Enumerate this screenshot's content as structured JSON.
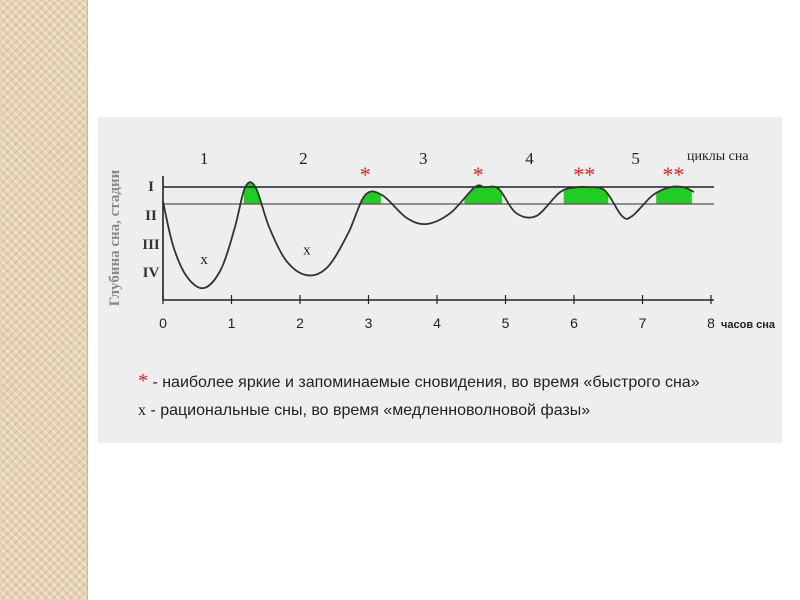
{
  "chart_data": {
    "type": "line",
    "ylabel": "Глубина сна, стадии",
    "xlabel": "часов сна",
    "series_label": "циклы сна",
    "xlim": [
      0,
      8
    ],
    "x_ticks": [
      "0",
      "1",
      "2",
      "3",
      "4",
      "5",
      "6",
      "7",
      "8"
    ],
    "y_stages": [
      "I",
      "II",
      "III",
      "IV"
    ],
    "cycles": [
      "1",
      "2",
      "3",
      "4",
      "5"
    ],
    "hypnogram": {
      "x": [
        0.0,
        0.15,
        0.35,
        0.6,
        0.85,
        1.05,
        1.2,
        1.35,
        1.55,
        1.8,
        2.1,
        2.4,
        2.7,
        2.95,
        3.2,
        3.55,
        3.85,
        4.2,
        4.55,
        4.7,
        4.9,
        5.15,
        5.45,
        5.8,
        6.05,
        6.2,
        6.45,
        6.7,
        6.85,
        7.15,
        7.4,
        7.6,
        7.75
      ],
      "y": [
        1.3,
        2.7,
        3.65,
        4.0,
        3.4,
        2.1,
        0.85,
        0.85,
        2.1,
        3.15,
        3.6,
        3.35,
        2.3,
        1.1,
        1.1,
        1.8,
        2.0,
        1.65,
        0.85,
        0.85,
        0.9,
        1.65,
        1.75,
        1.0,
        0.85,
        0.85,
        0.95,
        1.75,
        1.75,
        1.1,
        0.85,
        0.85,
        1.0
      ]
    },
    "rem_segments": [
      [
        1.18,
        1.42
      ],
      [
        2.78,
        3.18
      ],
      [
        4.4,
        4.95
      ],
      [
        5.85,
        6.5
      ],
      [
        7.2,
        7.72
      ]
    ],
    "markers": [
      {
        "x": 0.6,
        "y": 3.25,
        "text": "x"
      },
      {
        "x": 2.1,
        "y": 2.95,
        "text": "x"
      },
      {
        "x": 2.95,
        "y": 0.05,
        "text": "*"
      },
      {
        "x": 4.6,
        "y": 0.05,
        "text": "*"
      },
      {
        "x": 6.15,
        "y": 0.05,
        "text": "**"
      },
      {
        "x": 7.45,
        "y": 0.05,
        "text": "**"
      }
    ],
    "colors": {
      "line": "#333333",
      "rem_fill": "#22cc22",
      "star": "#e02020"
    }
  },
  "legend": {
    "star_symbol": "*",
    "star_text": " - наиболее яркие и запоминаемые сновидения, во время «быстрого сна»",
    "x_symbol": "x",
    "x_text": " - рациональные сны, во время «медленноволновой фазы»"
  }
}
